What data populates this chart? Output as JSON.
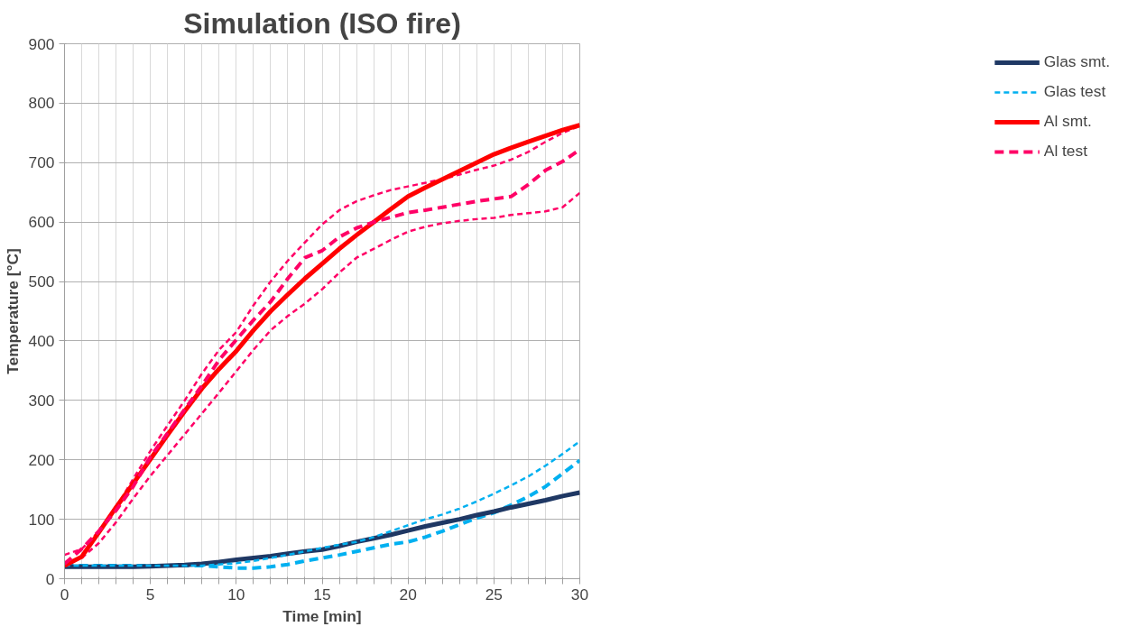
{
  "chart_data": {
    "type": "line",
    "title": "Simulation (ISO fire)",
    "xlabel": "Time [min]",
    "ylabel": "Temperature [°C]",
    "xlim": [
      0,
      30
    ],
    "ylim": [
      0,
      900
    ],
    "xticks": [
      0,
      {
        "value": 1,
        "label": null
      },
      {
        "value": 2,
        "label": null
      },
      {
        "value": 3,
        "label": null
      },
      {
        "value": 4,
        "label": null
      },
      5,
      {
        "value": 6,
        "label": null
      },
      {
        "value": 7,
        "label": null
      },
      {
        "value": 8,
        "label": null
      },
      {
        "value": 9,
        "label": null
      },
      10,
      {
        "value": 11,
        "label": null
      },
      {
        "value": 12,
        "label": null
      },
      {
        "value": 13,
        "label": null
      },
      {
        "value": 14,
        "label": null
      },
      15,
      {
        "value": 16,
        "label": null
      },
      {
        "value": 17,
        "label": null
      },
      {
        "value": 18,
        "label": null
      },
      {
        "value": 19,
        "label": null
      },
      20,
      {
        "value": 21,
        "label": null
      },
      {
        "value": 22,
        "label": null
      },
      {
        "value": 23,
        "label": null
      },
      {
        "value": 24,
        "label": null
      },
      25,
      {
        "value": 26,
        "label": null
      },
      {
        "value": 27,
        "label": null
      },
      {
        "value": 28,
        "label": null
      },
      {
        "value": 29,
        "label": null
      },
      30
    ],
    "yticks": [
      0,
      100,
      200,
      300,
      400,
      500,
      600,
      700,
      800,
      900
    ],
    "grid": true,
    "legend": "right",
    "marker": "none",
    "x": [
      0,
      1,
      2,
      3,
      4,
      5,
      6,
      7,
      8,
      9,
      10,
      11,
      12,
      13,
      14,
      15,
      16,
      17,
      18,
      19,
      20,
      21,
      22,
      23,
      24,
      25,
      26,
      27,
      28,
      29,
      30
    ],
    "series": [
      {
        "color": "#ff0066",
        "line_style": "dotted",
        "values": [
          40,
          50,
          80,
          120,
          168,
          215,
          258,
          300,
          345,
          385,
          415,
          460,
          500,
          535,
          566,
          596,
          620,
          635,
          645,
          654,
          660,
          666,
          672,
          680,
          688,
          695,
          705,
          718,
          735,
          750,
          762
        ]
      },
      {
        "color": "#ff0066",
        "line_style": "dotted",
        "values": [
          25,
          35,
          60,
          95,
          135,
          173,
          208,
          243,
          278,
          313,
          349,
          385,
          418,
          442,
          463,
          487,
          515,
          540,
          555,
          570,
          584,
          592,
          598,
          602,
          605,
          607,
          612,
          615,
          618,
          625,
          649
        ]
      },
      {
        "color": "#00b0f0",
        "line_style": "dashed",
        "values": [
          22,
          22,
          22,
          22,
          22,
          22,
          22,
          22,
          22,
          20,
          18,
          18,
          20,
          24,
          30,
          35,
          40,
          46,
          52,
          58,
          62,
          70,
          80,
          91,
          102,
          111,
          124,
          138,
          155,
          177,
          199
        ]
      },
      {
        "name": "Glas smt.",
        "color": "#1f3864",
        "line_style": "solid",
        "values": [
          20,
          20,
          20,
          20,
          20,
          21,
          22,
          23,
          25,
          28,
          32,
          35,
          38,
          42,
          46,
          49,
          55,
          62,
          68,
          74,
          81,
          88,
          94,
          100,
          107,
          113,
          120,
          126,
          132,
          139,
          145
        ]
      },
      {
        "name": "Glas test",
        "color": "#00b0f0",
        "line_style": "dotted",
        "values": [
          22,
          22,
          22,
          22,
          22,
          22,
          22,
          22,
          22,
          24,
          26,
          30,
          35,
          40,
          46,
          52,
          57,
          62,
          70,
          80,
          90,
          100,
          108,
          118,
          130,
          143,
          157,
          172,
          190,
          210,
          231
        ]
      },
      {
        "name": "Al smt.",
        "color": "#ff0000",
        "line_style": "solid",
        "values": [
          22,
          37,
          78,
          120,
          160,
          201,
          242,
          282,
          320,
          353,
          383,
          418,
          450,
          478,
          505,
          530,
          555,
          578,
          600,
          622,
          643,
          658,
          672,
          686,
          700,
          714,
          725,
          735,
          745,
          755,
          763
        ]
      },
      {
        "name": "Al test",
        "color": "#ff0066",
        "line_style": "dashed",
        "values": [
          25,
          50,
          80,
          115,
          155,
          205,
          245,
          285,
          325,
          368,
          402,
          435,
          466,
          505,
          540,
          552,
          575,
          590,
          600,
          608,
          616,
          620,
          625,
          630,
          635,
          639,
          643,
          663,
          687,
          702,
          722
        ]
      }
    ]
  }
}
